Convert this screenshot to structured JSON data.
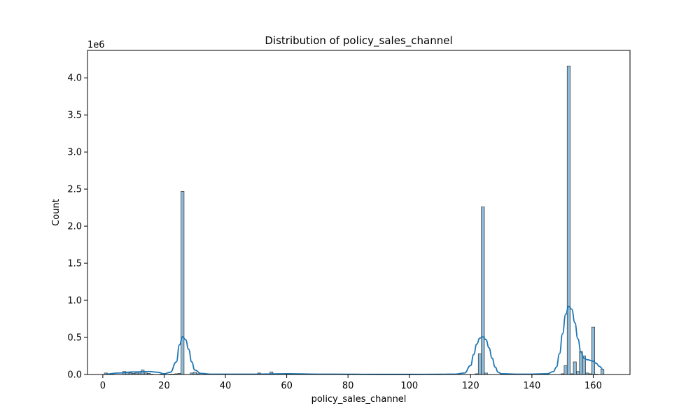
{
  "chart_data": {
    "type": "bar",
    "title": "Distribution of policy_sales_channel",
    "xlabel": "policy_sales_channel",
    "ylabel": "Count",
    "y_offset_label": "1e6",
    "xlim": [
      -5,
      172
    ],
    "ylim": [
      0,
      4.37
    ],
    "y_units": "millions",
    "xticks": [
      0,
      20,
      40,
      60,
      80,
      100,
      120,
      140,
      160
    ],
    "yticks": [
      0.0,
      0.5,
      1.0,
      1.5,
      2.0,
      2.5,
      3.0,
      3.5,
      4.0
    ],
    "ytick_labels": [
      "0.0",
      "0.5",
      "1.0",
      "1.5",
      "2.0",
      "2.5",
      "3.0",
      "3.5",
      "4.0"
    ],
    "grid": false,
    "bar_color": "#1f77b4",
    "kde_color": "#1f77b4",
    "bars": [
      {
        "x": 1,
        "value": 0.02
      },
      {
        "x": 2,
        "value": 0.01
      },
      {
        "x": 3,
        "value": 0.015
      },
      {
        "x": 7,
        "value": 0.04
      },
      {
        "x": 8,
        "value": 0.035
      },
      {
        "x": 9,
        "value": 0.02
      },
      {
        "x": 10,
        "value": 0.015
      },
      {
        "x": 11,
        "value": 0.02
      },
      {
        "x": 12,
        "value": 0.02
      },
      {
        "x": 13,
        "value": 0.06
      },
      {
        "x": 14,
        "value": 0.02
      },
      {
        "x": 15,
        "value": 0.015
      },
      {
        "x": 16,
        "value": 0.005
      },
      {
        "x": 19,
        "value": 0.005
      },
      {
        "x": 22,
        "value": 0.005
      },
      {
        "x": 23,
        "value": 0.005
      },
      {
        "x": 24,
        "value": 0.01
      },
      {
        "x": 25,
        "value": 0.015
      },
      {
        "x": 26,
        "value": 2.47
      },
      {
        "x": 29,
        "value": 0.02
      },
      {
        "x": 30,
        "value": 0.03
      },
      {
        "x": 31,
        "value": 0.01
      },
      {
        "x": 51,
        "value": 0.02
      },
      {
        "x": 52,
        "value": 0.01
      },
      {
        "x": 54,
        "value": 0.01
      },
      {
        "x": 55,
        "value": 0.035
      },
      {
        "x": 56,
        "value": 0.01
      },
      {
        "x": 60,
        "value": 0.01
      },
      {
        "x": 61,
        "value": 0.015
      },
      {
        "x": 62,
        "value": 0.01
      },
      {
        "x": 109,
        "value": 0.005
      },
      {
        "x": 122,
        "value": 0.01
      },
      {
        "x": 123,
        "value": 0.28
      },
      {
        "x": 124,
        "value": 2.26
      },
      {
        "x": 125,
        "value": 0.02
      },
      {
        "x": 136,
        "value": 0.005
      },
      {
        "x": 150,
        "value": 0.01
      },
      {
        "x": 151,
        "value": 0.12
      },
      {
        "x": 152,
        "value": 4.16
      },
      {
        "x": 153,
        "value": 0.01
      },
      {
        "x": 154,
        "value": 0.17
      },
      {
        "x": 155,
        "value": 0.04
      },
      {
        "x": 156,
        "value": 0.31
      },
      {
        "x": 157,
        "value": 0.25
      },
      {
        "x": 158,
        "value": 0.02
      },
      {
        "x": 159,
        "value": 0.01
      },
      {
        "x": 160,
        "value": 0.64
      },
      {
        "x": 161,
        "value": 0.005
      },
      {
        "x": 163,
        "value": 0.07
      }
    ],
    "kde": {
      "x": [
        1,
        5,
        10,
        15,
        18,
        20,
        22,
        24,
        25,
        26,
        27,
        28,
        29,
        30,
        32,
        35,
        40,
        50,
        60,
        70,
        80,
        90,
        100,
        110,
        115,
        118,
        120,
        121,
        122,
        123,
        124,
        125,
        126,
        127,
        128,
        129,
        130,
        135,
        140,
        145,
        147,
        148,
        149,
        150,
        151,
        152,
        153,
        154,
        155,
        156,
        157,
        158,
        160,
        161,
        162,
        163
      ],
      "y": [
        0.005,
        0.02,
        0.035,
        0.04,
        0.03,
        0.01,
        0.03,
        0.17,
        0.4,
        0.51,
        0.47,
        0.34,
        0.17,
        0.06,
        0.015,
        0.005,
        0.005,
        0.005,
        0.01,
        0.005,
        0.003,
        0.002,
        0.002,
        0.003,
        0.005,
        0.02,
        0.12,
        0.27,
        0.41,
        0.49,
        0.51,
        0.47,
        0.36,
        0.22,
        0.1,
        0.03,
        0.01,
        0.005,
        0.005,
        0.01,
        0.04,
        0.1,
        0.28,
        0.55,
        0.81,
        0.92,
        0.88,
        0.7,
        0.48,
        0.3,
        0.22,
        0.2,
        0.18,
        0.15,
        0.11,
        0.08
      ]
    }
  }
}
